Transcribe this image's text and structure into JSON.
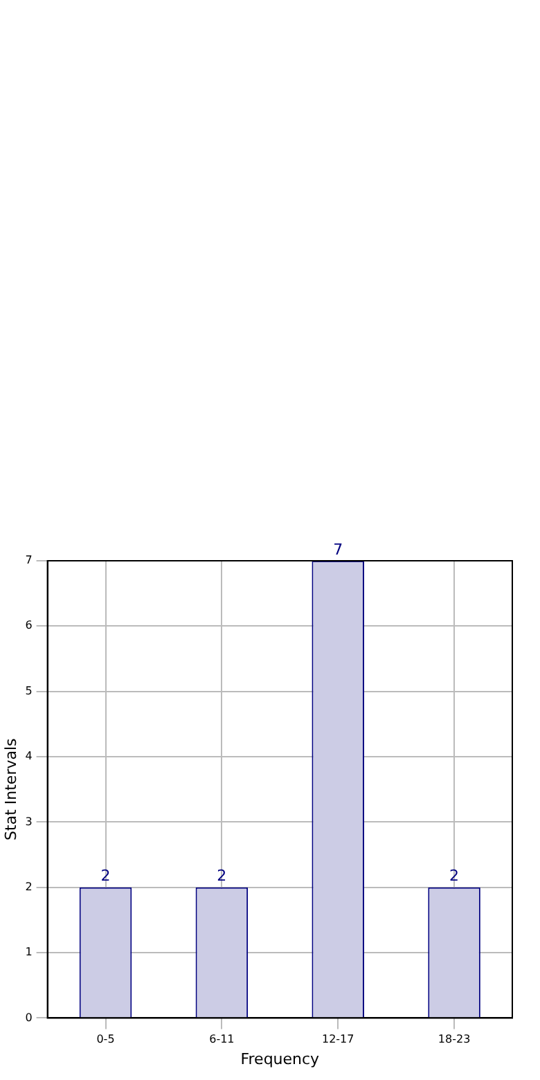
{
  "chart_data": {
    "type": "bar",
    "xlabel": "Frequency",
    "ylabel": "Stat Intervals",
    "categories": [
      "0-5",
      "6-11",
      "12-17",
      "18-23"
    ],
    "values": [
      2,
      2,
      7,
      2
    ],
    "color": "#ccccE5",
    "ylim": [
      0,
      7
    ],
    "yticks": [
      0,
      1,
      2,
      3,
      4,
      5,
      6,
      7
    ],
    "grid": true,
    "data_labels": true,
    "legend": false
  }
}
